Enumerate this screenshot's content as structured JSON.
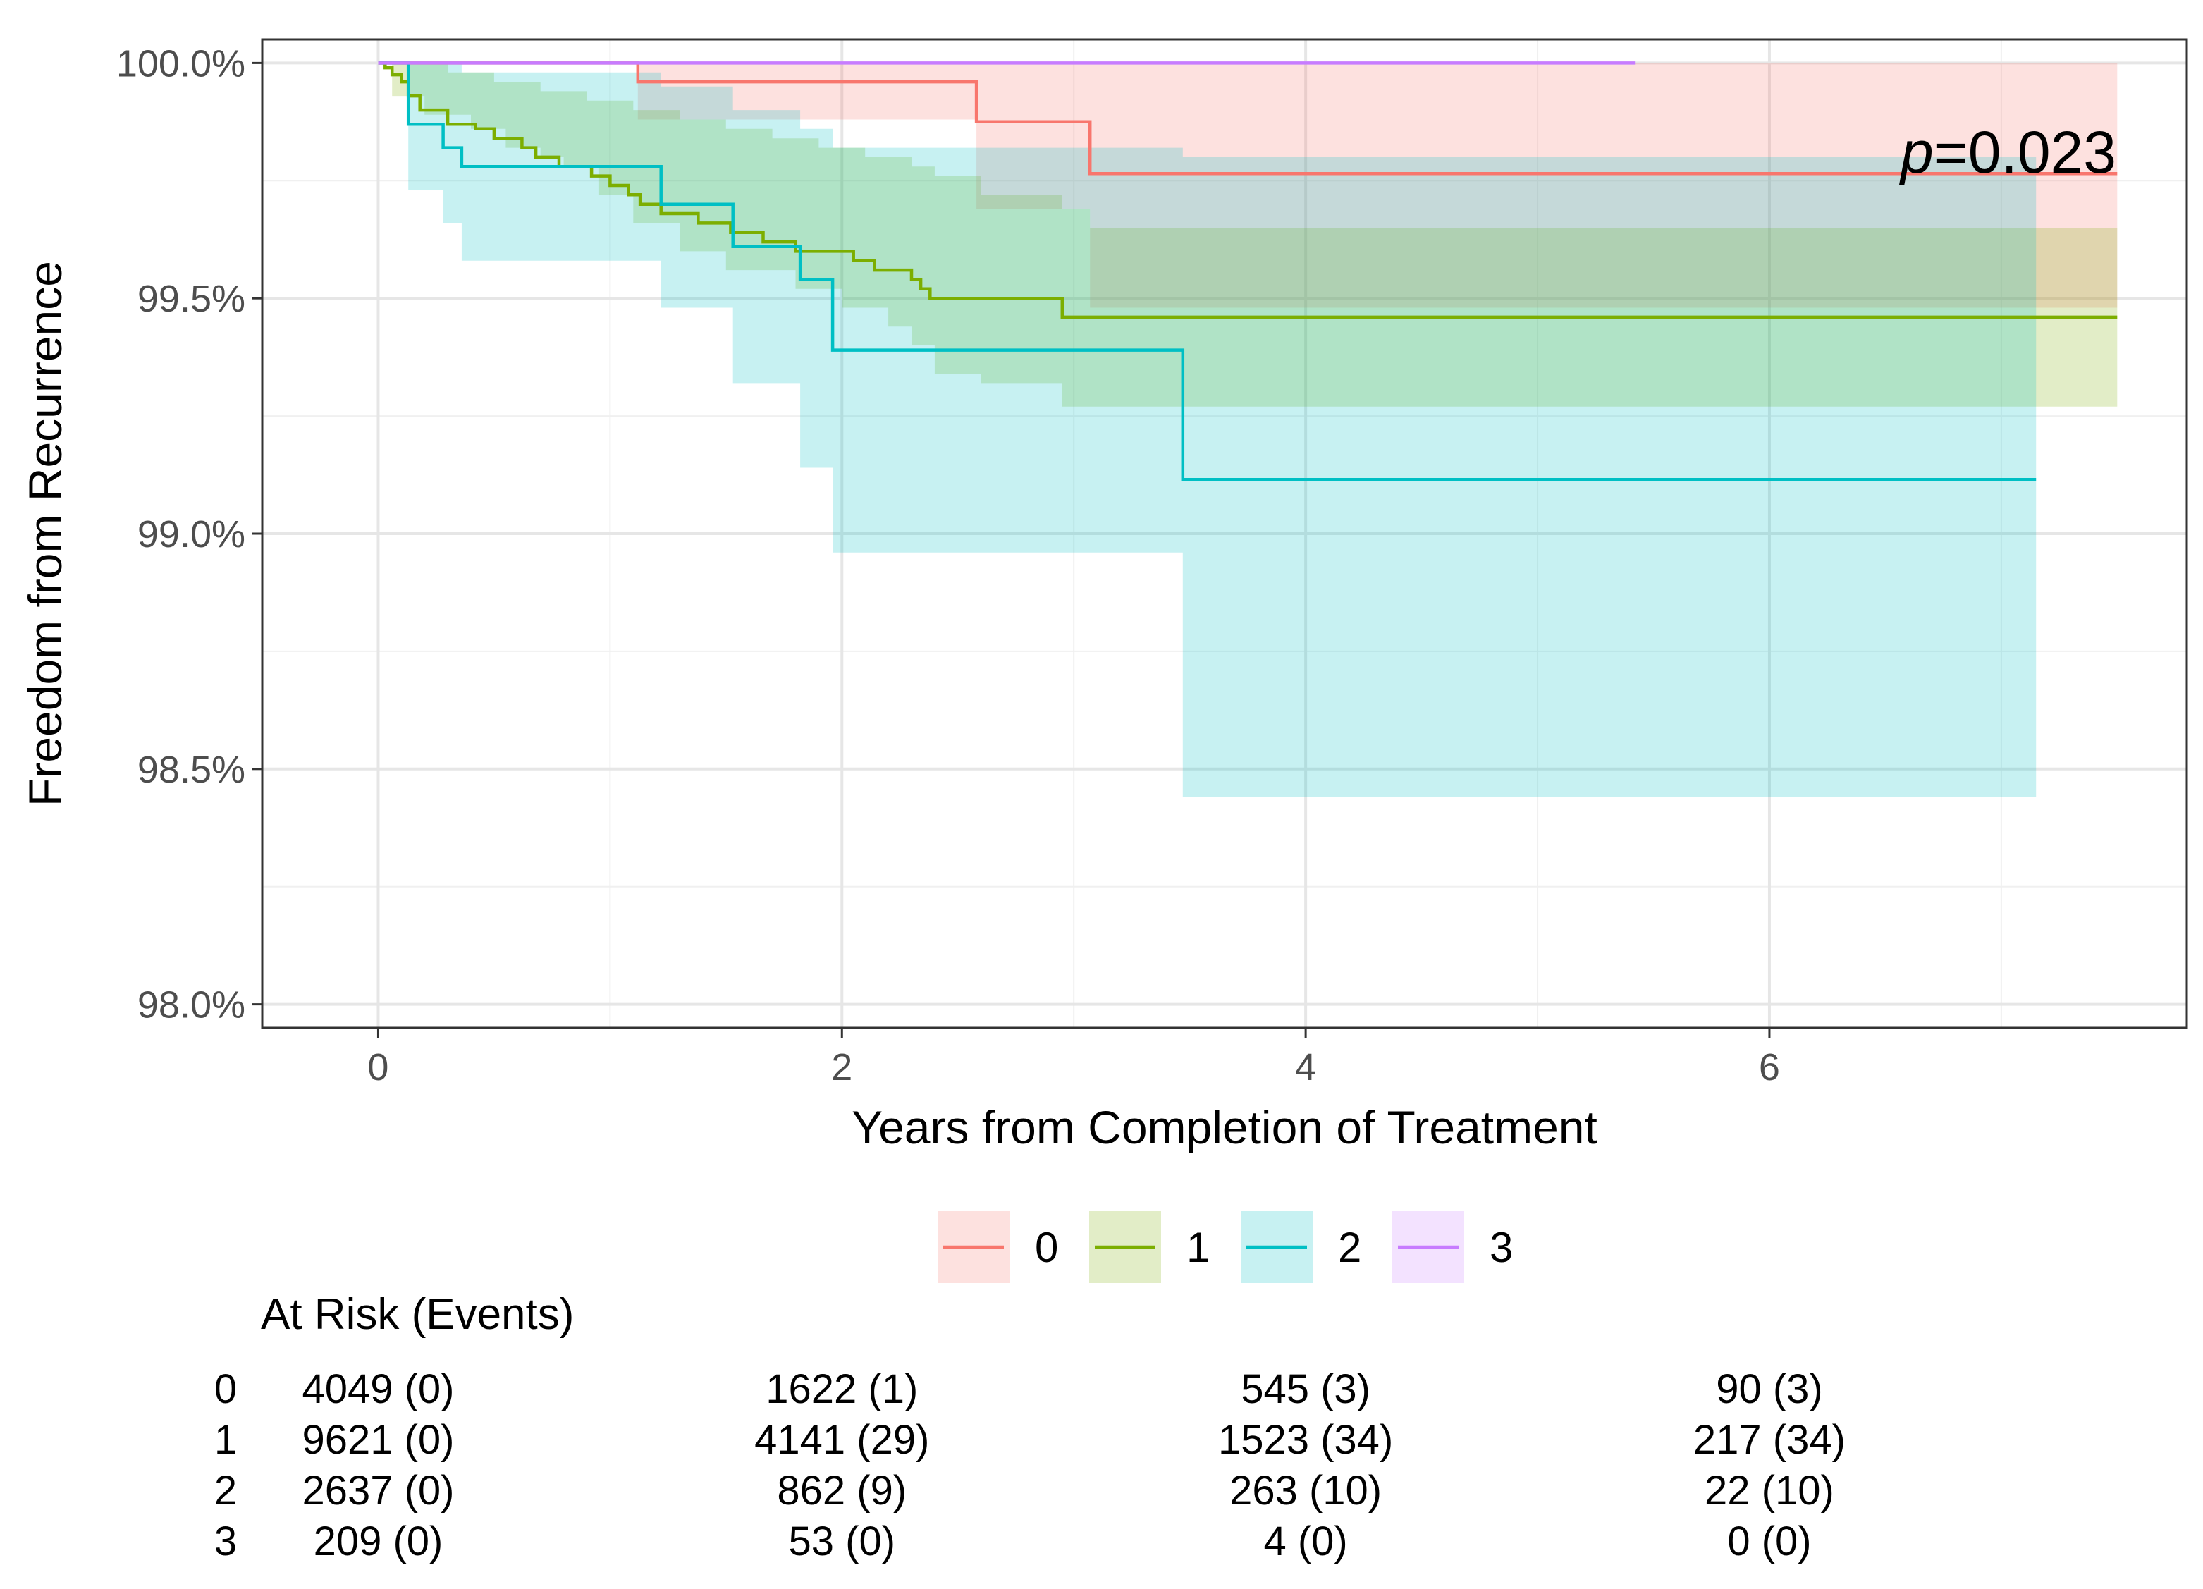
{
  "chart_data": {
    "type": "line",
    "subtype": "kaplan-meier",
    "title": "",
    "xlabel": "Years from Completion of Treatment",
    "ylabel": "Freedom from Recurrence",
    "xlim": [
      -0.5,
      7.8
    ],
    "ylim": [
      97.95,
      100.05
    ],
    "x_ticks": [
      0,
      2,
      4,
      6
    ],
    "x_tick_labels": [
      "0",
      "2",
      "4",
      "6"
    ],
    "y_ticks": [
      98.0,
      98.5,
      99.0,
      99.5,
      100.0
    ],
    "y_tick_labels": [
      "98.0%",
      "98.5%",
      "99.0%",
      "99.5%",
      "100.0%"
    ],
    "x_minor": [
      1,
      3,
      5,
      7
    ],
    "y_minor": [
      98.25,
      98.75,
      99.25,
      99.75
    ],
    "grid": true,
    "annotation": {
      "prefix": "p",
      "text": "=0.023",
      "x": 7.5,
      "y": 99.78
    },
    "legend": {
      "position": "bottom",
      "entries": [
        "0",
        "1",
        "2",
        "3"
      ]
    },
    "series": [
      {
        "name": "0",
        "color": "#F8766D",
        "fill": "#F8766D",
        "steps": [
          [
            0,
            100
          ],
          [
            1.12,
            99.96
          ],
          [
            2.58,
            99.875
          ],
          [
            3.07,
            99.765
          ],
          [
            7.5,
            99.765
          ]
        ],
        "ci_upper": [
          [
            0,
            100
          ],
          [
            7.5,
            100
          ]
        ],
        "ci_lower": [
          [
            0,
            100
          ],
          [
            1.12,
            99.88
          ],
          [
            2.58,
            99.69
          ],
          [
            3.07,
            99.48
          ],
          [
            7.5,
            99.48
          ]
        ]
      },
      {
        "name": "1",
        "color": "#7CAE00",
        "fill": "#7CAE00",
        "steps": [
          [
            0,
            100
          ],
          [
            0.03,
            99.99
          ],
          [
            0.06,
            99.975
          ],
          [
            0.1,
            99.96
          ],
          [
            0.13,
            99.93
          ],
          [
            0.18,
            99.9
          ],
          [
            0.3,
            99.87
          ],
          [
            0.42,
            99.86
          ],
          [
            0.5,
            99.84
          ],
          [
            0.62,
            99.82
          ],
          [
            0.68,
            99.8
          ],
          [
            0.78,
            99.78
          ],
          [
            0.92,
            99.76
          ],
          [
            1.0,
            99.74
          ],
          [
            1.08,
            99.72
          ],
          [
            1.13,
            99.7
          ],
          [
            1.22,
            99.68
          ],
          [
            1.38,
            99.66
          ],
          [
            1.52,
            99.64
          ],
          [
            1.66,
            99.62
          ],
          [
            1.8,
            99.6
          ],
          [
            2.05,
            99.58
          ],
          [
            2.14,
            99.56
          ],
          [
            2.3,
            99.54
          ],
          [
            2.34,
            99.52
          ],
          [
            2.38,
            99.5
          ],
          [
            2.95,
            99.46
          ],
          [
            7.5,
            99.46
          ]
        ],
        "ci_upper": [
          [
            0,
            100
          ],
          [
            0.1,
            100
          ],
          [
            0.3,
            99.98
          ],
          [
            0.5,
            99.96
          ],
          [
            0.7,
            99.94
          ],
          [
            0.9,
            99.92
          ],
          [
            1.1,
            99.9
          ],
          [
            1.3,
            99.88
          ],
          [
            1.5,
            99.86
          ],
          [
            1.7,
            99.84
          ],
          [
            1.9,
            99.82
          ],
          [
            2.1,
            99.8
          ],
          [
            2.3,
            99.78
          ],
          [
            2.4,
            99.76
          ],
          [
            2.6,
            99.72
          ],
          [
            2.95,
            99.69
          ],
          [
            3.07,
            99.65
          ],
          [
            7.5,
            99.65
          ]
        ],
        "ci_lower": [
          [
            0,
            100
          ],
          [
            0.06,
            99.93
          ],
          [
            0.2,
            99.89
          ],
          [
            0.4,
            99.86
          ],
          [
            0.55,
            99.82
          ],
          [
            0.7,
            99.8
          ],
          [
            0.8,
            99.78
          ],
          [
            0.95,
            99.72
          ],
          [
            1.1,
            99.66
          ],
          [
            1.3,
            99.6
          ],
          [
            1.5,
            99.56
          ],
          [
            1.8,
            99.52
          ],
          [
            2.0,
            99.48
          ],
          [
            2.2,
            99.44
          ],
          [
            2.3,
            99.4
          ],
          [
            2.4,
            99.34
          ],
          [
            2.6,
            99.32
          ],
          [
            2.95,
            99.27
          ],
          [
            7.5,
            99.27
          ]
        ]
      },
      {
        "name": "2",
        "color": "#00BFC4",
        "fill": "#00BFC4",
        "steps": [
          [
            0,
            100
          ],
          [
            0.13,
            99.87
          ],
          [
            0.28,
            99.82
          ],
          [
            0.36,
            99.78
          ],
          [
            1.22,
            99.7
          ],
          [
            1.53,
            99.61
          ],
          [
            1.82,
            99.54
          ],
          [
            1.96,
            99.39
          ],
          [
            3.47,
            99.115
          ],
          [
            7.15,
            99.115
          ]
        ],
        "ci_upper": [
          [
            0,
            100
          ],
          [
            0.36,
            99.98
          ],
          [
            1.22,
            99.95
          ],
          [
            1.53,
            99.9
          ],
          [
            1.82,
            99.86
          ],
          [
            1.96,
            99.82
          ],
          [
            3.47,
            99.82
          ],
          [
            3.47,
            99.8
          ],
          [
            7.15,
            99.8
          ]
        ],
        "ci_lower": [
          [
            0,
            100
          ],
          [
            0.13,
            99.73
          ],
          [
            0.28,
            99.66
          ],
          [
            0.36,
            99.58
          ],
          [
            1.22,
            99.48
          ],
          [
            1.53,
            99.32
          ],
          [
            1.82,
            99.14
          ],
          [
            1.96,
            98.96
          ],
          [
            3.47,
            98.44
          ],
          [
            7.15,
            98.44
          ]
        ]
      },
      {
        "name": "3",
        "color": "#C77CFF",
        "fill": "#C77CFF",
        "steps": [
          [
            0,
            100
          ],
          [
            5.42,
            100
          ]
        ],
        "ci_upper": [
          [
            0,
            100
          ],
          [
            5.42,
            100
          ]
        ],
        "ci_lower": [
          [
            0,
            100
          ],
          [
            5.42,
            100
          ]
        ]
      }
    ],
    "risk_table": {
      "title": "At Risk (Events)",
      "time_points": [
        0,
        2,
        4,
        6
      ],
      "rows": [
        {
          "group": "0",
          "cells": [
            "4049 (0)",
            "1622 (1)",
            "545 (3)",
            "90 (3)"
          ]
        },
        {
          "group": "1",
          "cells": [
            "9621 (0)",
            "4141 (29)",
            "1523 (34)",
            "217 (34)"
          ]
        },
        {
          "group": "2",
          "cells": [
            "2637 (0)",
            "862 (9)",
            "263 (10)",
            "22 (10)"
          ]
        },
        {
          "group": "3",
          "cells": [
            "209 (0)",
            "53 (0)",
            "4 (0)",
            "0 (0)"
          ]
        }
      ]
    }
  }
}
